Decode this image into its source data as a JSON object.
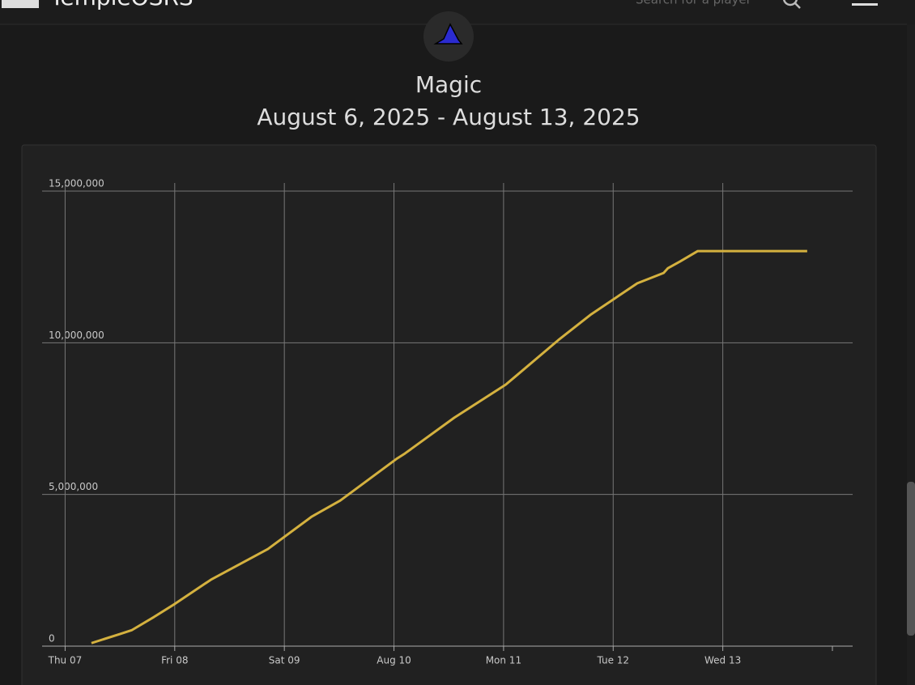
{
  "header": {
    "site_name": "TempleOSRS",
    "search_placeholder": "Search for a player"
  },
  "chart_data": {
    "type": "line",
    "title": "Magic",
    "subtitle": "August 6, 2025 - August 13, 2025",
    "x": [
      7.24,
      7.5,
      7.61,
      7.81,
      8.0,
      8.33,
      8.85,
      9.25,
      9.51,
      10.03,
      10.1,
      10.55,
      11.02,
      11.5,
      11.8,
      12.22,
      12.46,
      12.5,
      12.61,
      12.77,
      13.77
    ],
    "values": [
      100000,
      400000,
      530000,
      960000,
      1390000,
      2190000,
      3200000,
      4270000,
      4800000,
      6190000,
      6350000,
      7530000,
      8620000,
      10090000,
      10940000,
      11960000,
      12300000,
      12460000,
      12680000,
      13020000,
      13020000
    ],
    "color": "#d4b13f",
    "xlim": [
      6.79,
      14.0
    ],
    "xticks": [
      {
        "value": 7,
        "label": "Thu 07"
      },
      {
        "value": 8,
        "label": "Fri 08"
      },
      {
        "value": 9,
        "label": "Sat 09"
      },
      {
        "value": 10,
        "label": "Aug 10"
      },
      {
        "value": 11,
        "label": "Mon 11"
      },
      {
        "value": 12,
        "label": "Tue 12"
      },
      {
        "value": 13,
        "label": "Wed 13"
      }
    ],
    "ylim": [
      0,
      15000000
    ],
    "yticks": [
      0,
      {
        "value": 5000000,
        "label": "5,000,000"
      },
      {
        "value": 10000000,
        "label": "10,000,000"
      },
      {
        "value": 15000000,
        "label": "15,000,000"
      }
    ],
    "grid": true
  }
}
